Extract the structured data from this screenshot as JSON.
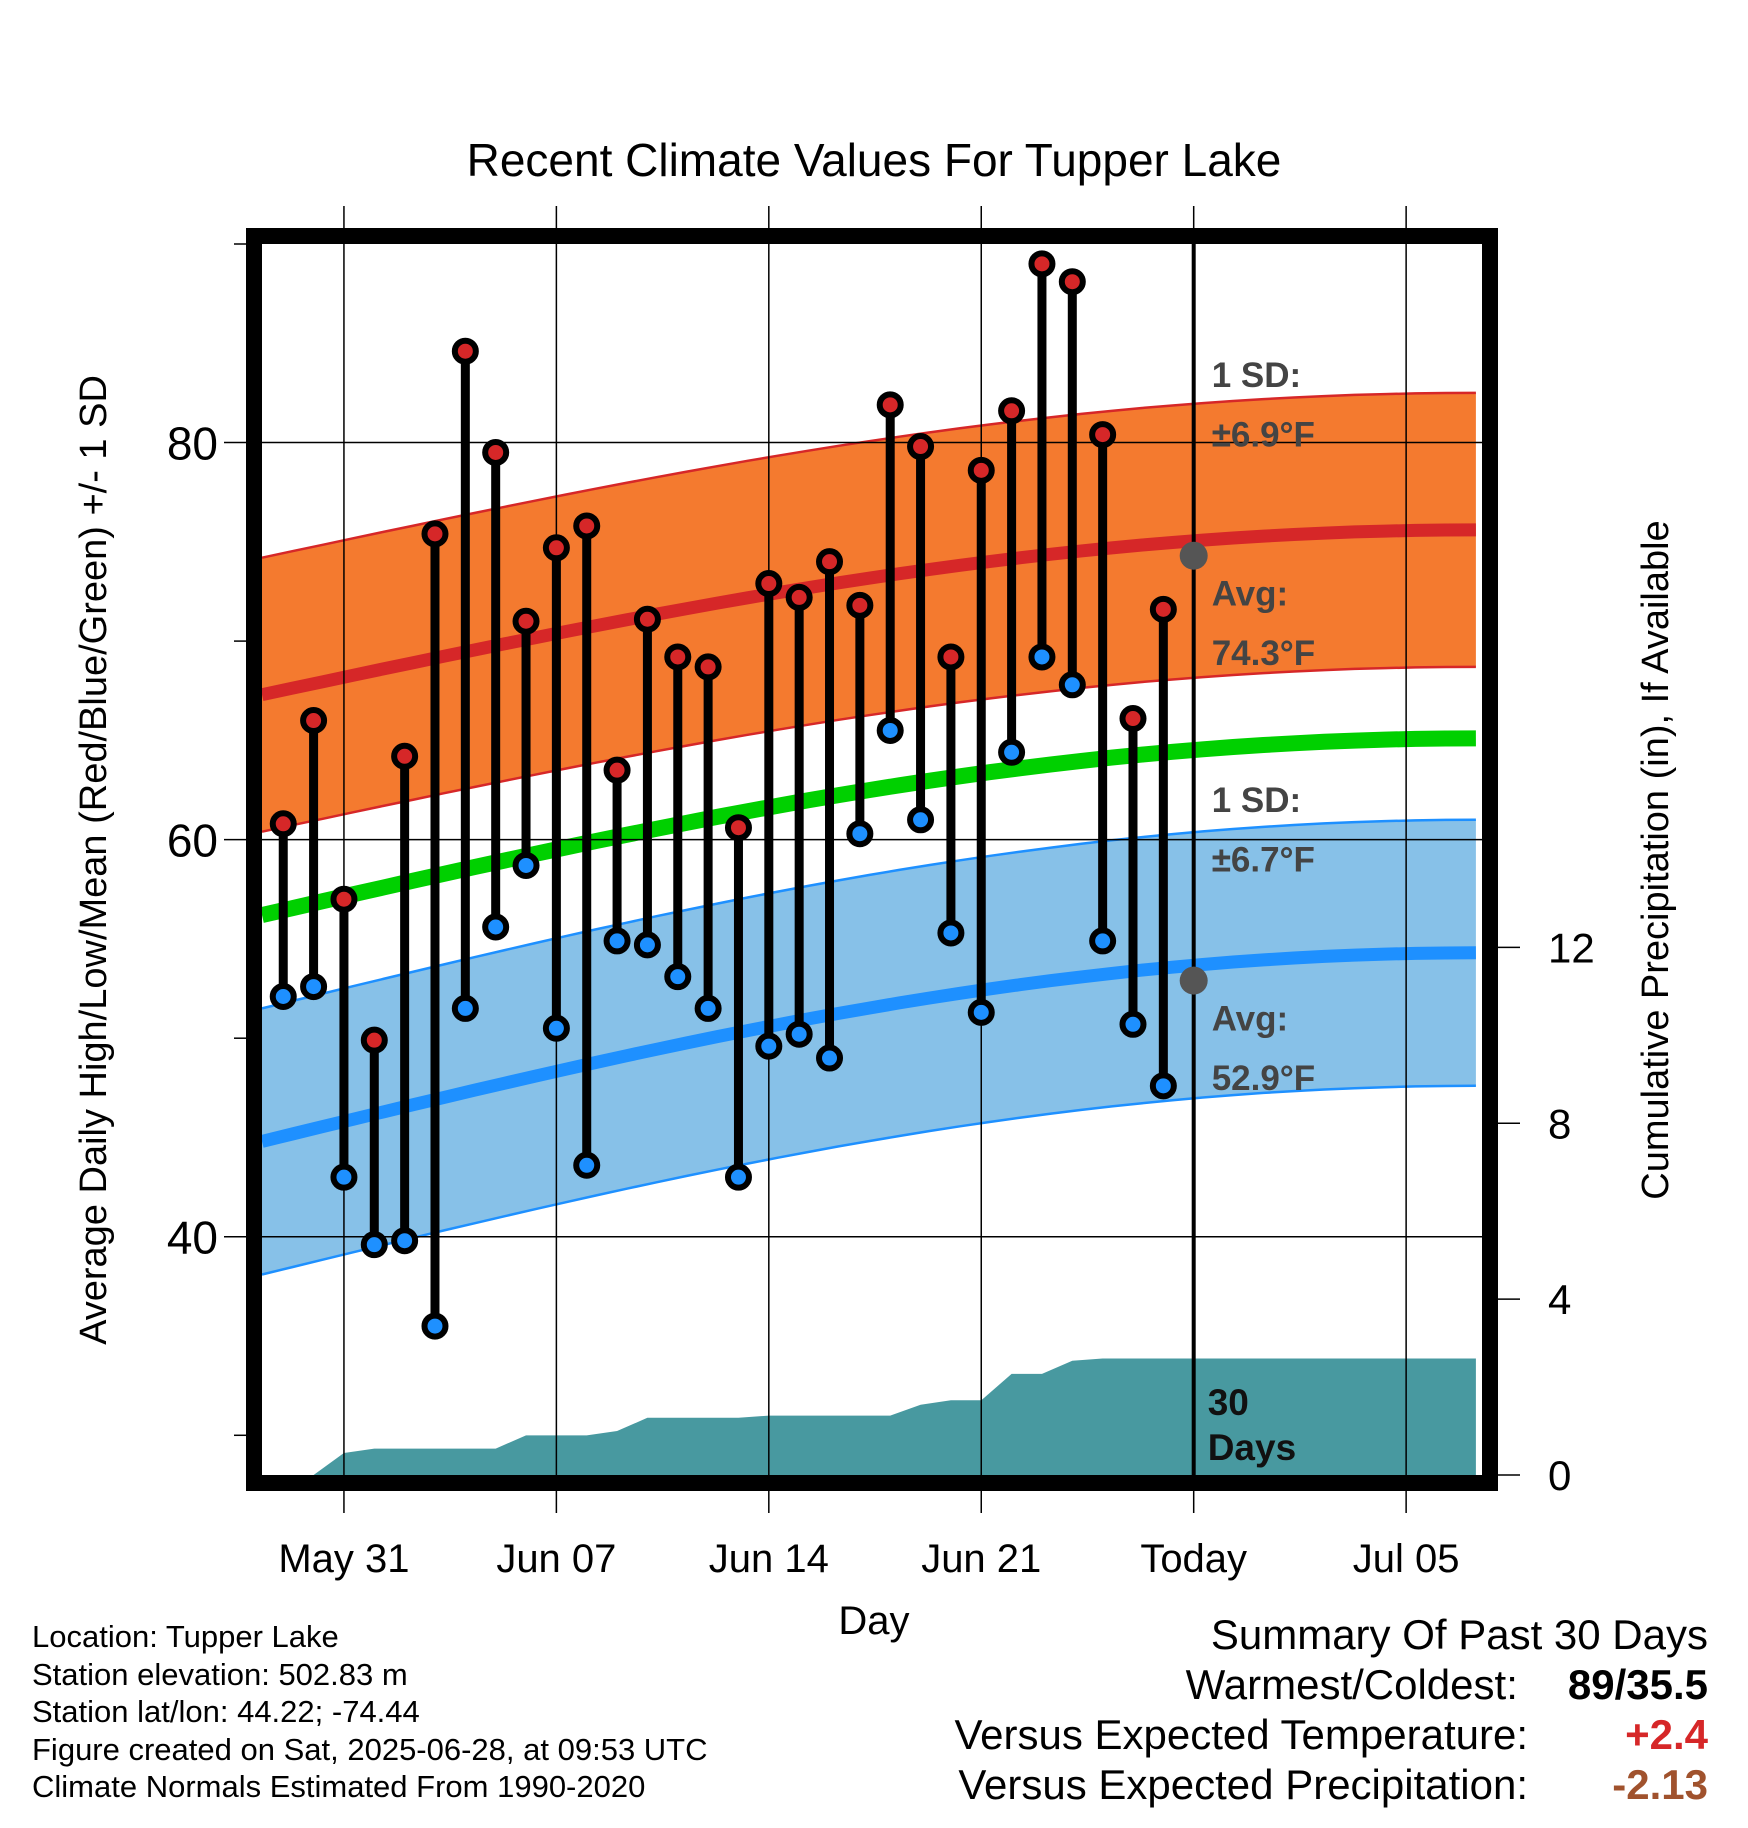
{
  "chart_data": {
    "type": "line",
    "title": "Recent Climate Values For Tupper Lake",
    "xlabel": "Day",
    "ylabel": "Average Daily High/Low/Mean (Red/Blue/Green) +/- 1 SD",
    "y2label": "Cumulative Precipitation (in), If Available",
    "ylim": [
      28,
      90
    ],
    "y2lim": [
      0,
      28
    ],
    "yticks": [
      40,
      60,
      80
    ],
    "y2ticks": [
      0,
      4,
      8,
      12
    ],
    "xticks": [
      {
        "day": 3,
        "label": "May 31"
      },
      {
        "day": 10,
        "label": "Jun 07"
      },
      {
        "day": 17,
        "label": "Jun 14"
      },
      {
        "day": 24,
        "label": "Jun 21"
      },
      {
        "day": 31,
        "label": "Today"
      },
      {
        "day": 38,
        "label": "Jul 05"
      }
    ],
    "xlim": [
      0.3,
      40.5
    ],
    "grid": true,
    "days": [
      1,
      2,
      3,
      4,
      5,
      6,
      7,
      8,
      9,
      10,
      11,
      12,
      13,
      14,
      15,
      16,
      17,
      18,
      19,
      20,
      21,
      22,
      23,
      24,
      25,
      26,
      27,
      28,
      29,
      30
    ],
    "series": [
      {
        "name": "",
        "color": "#d62728",
        "values": [
          60.8,
          66,
          57,
          49.9,
          64.2,
          75.4,
          84.6,
          79.5,
          71,
          74.7,
          75.8,
          63.5,
          71.1,
          69.2,
          68.7,
          60.6,
          72.9,
          72.2,
          74,
          71.8,
          81.9,
          79.8,
          69.2,
          78.6,
          81.6,
          89,
          88.1,
          80.4,
          66.1,
          71.6
        ]
      },
      {
        "name": "",
        "color": "#1e90ff",
        "values": [
          52.1,
          52.6,
          43,
          39.6,
          39.8,
          35.5,
          51.5,
          55.6,
          58.7,
          50.5,
          43.6,
          54.9,
          54.7,
          53.1,
          51.5,
          43,
          49.6,
          50.2,
          49,
          60.3,
          65.5,
          61,
          55.3,
          51.3,
          64.4,
          69.2,
          67.8,
          54.9,
          50.7,
          47.6
        ]
      }
    ],
    "normals": {
      "high_avg": {
        "start": 67.3,
        "end": 75.6
      },
      "high_sd": 6.9,
      "low_avg": {
        "start": 44.8,
        "end": 54.3
      },
      "low_sd": 6.7,
      "mean_avg": {
        "start": 56.2,
        "end": 65.1
      },
      "range_days": [
        0.3,
        40.3
      ]
    },
    "precip_cumulative": {
      "days": [
        0.3,
        2,
        3,
        4,
        5,
        6,
        7,
        8,
        9,
        10,
        11,
        12,
        13,
        14,
        15,
        16,
        17,
        18,
        19,
        20,
        21,
        22,
        23,
        24,
        25,
        26,
        27,
        28,
        29,
        30,
        31,
        40.3
      ],
      "values": [
        0,
        0,
        0.5,
        0.6,
        0.6,
        0.6,
        0.6,
        0.6,
        0.9,
        0.9,
        0.9,
        1.0,
        1.3,
        1.3,
        1.3,
        1.3,
        1.35,
        1.35,
        1.35,
        1.35,
        1.35,
        1.6,
        1.7,
        1.7,
        2.3,
        2.3,
        2.6,
        2.65,
        2.65,
        2.65,
        2.65,
        2.65
      ]
    },
    "annotations": {
      "high_sd_label": "1 SD:",
      "high_sd_value": "±6.9°F",
      "high_avg_label": "Avg:",
      "high_avg_value": "74.3°F",
      "low_sd_label": "1 SD:",
      "low_sd_value": "±6.7°F",
      "low_avg_label": "Avg:",
      "low_avg_value": "52.9°F",
      "period_line1": "30",
      "period_line2": "Days"
    },
    "colors": {
      "high_band": "#f47a2f",
      "high_band_edge": "#d62728",
      "high_line": "#d62728",
      "low_band": "#87c1e8",
      "low_band_edge": "#1e90ff",
      "low_line": "#1e90ff",
      "mean_line": "#00d000",
      "precip": "#4899a0",
      "annotation": "#444444"
    }
  },
  "info": {
    "location": "Location: Tupper Lake",
    "elevation": "Station elevation: 502.83 m",
    "latlon": "Station lat/lon: 44.22; -74.44",
    "created": "Figure created on Sat, 2025-06-28, at 09:53 UTC",
    "normals": "Climate Normals Estimated From 1990-2020"
  },
  "summary": {
    "title": "Summary Of Past 30 Days",
    "warm_cold_label": "Warmest/Coldest:",
    "warm_cold_value": "89/35.5",
    "temp_label": "Versus Expected Temperature:",
    "temp_value": "+2.4",
    "temp_color": "#d62728",
    "precip_label": "Versus Expected Precipitation:",
    "precip_value": "-2.13",
    "precip_color": "#a0522d"
  }
}
